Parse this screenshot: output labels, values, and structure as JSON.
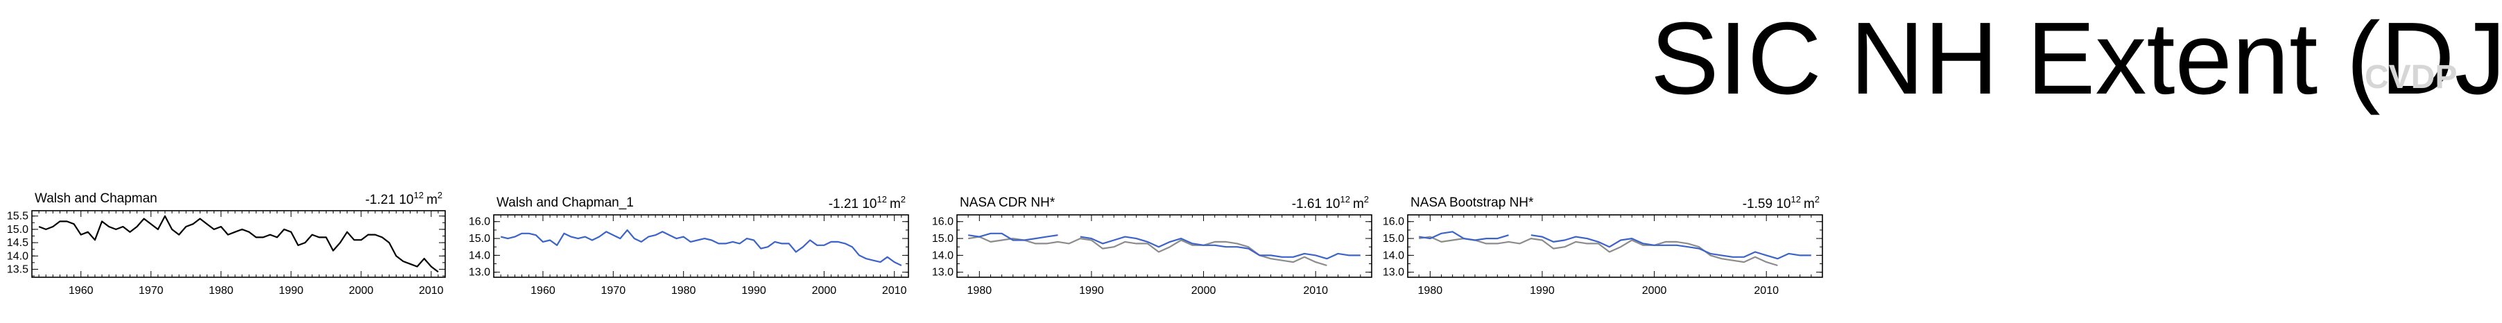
{
  "header": {
    "title": "SIC NH Extent (DJF)",
    "watermark": "CVDP"
  },
  "colors": {
    "obs_line": "#000000",
    "model_line": "#3b63c9",
    "reference_line": "#8c8c8c"
  },
  "chart_data": [
    {
      "type": "line",
      "title": "Walsh and Chapman",
      "trend": "-1.21 10",
      "trend_exp": "12",
      "trend_unit": "m",
      "trend_unit_exp": "2",
      "xlim": [
        1953,
        2012
      ],
      "ylim": [
        13.2,
        15.7
      ],
      "xticks": [
        1960,
        1970,
        1980,
        1990,
        2000,
        2010
      ],
      "yticks": [
        13.5,
        14.0,
        14.5,
        15.0,
        15.5
      ],
      "series": [
        {
          "color": "#000000",
          "x": [
            1954,
            1955,
            1956,
            1957,
            1958,
            1959,
            1960,
            1961,
            1962,
            1963,
            1964,
            1965,
            1966,
            1967,
            1968,
            1969,
            1970,
            1971,
            1972,
            1973,
            1974,
            1975,
            1976,
            1977,
            1978,
            1979,
            1980,
            1981,
            1982,
            1983,
            1984,
            1985,
            1986,
            1987,
            1988,
            1989,
            1990,
            1991,
            1992,
            1993,
            1994,
            1995,
            1996,
            1997,
            1998,
            1999,
            2000,
            2001,
            2002,
            2003,
            2004,
            2005,
            2006,
            2007,
            2008,
            2009,
            2010,
            2011
          ],
          "values": [
            15.1,
            15.0,
            15.1,
            15.3,
            15.3,
            15.2,
            14.8,
            14.9,
            14.6,
            15.3,
            15.1,
            15.0,
            15.1,
            14.9,
            15.1,
            15.4,
            15.2,
            15.0,
            15.5,
            15.0,
            14.8,
            15.1,
            15.2,
            15.4,
            15.2,
            15.0,
            15.1,
            14.8,
            14.9,
            15.0,
            14.9,
            14.7,
            14.7,
            14.8,
            14.7,
            15.0,
            14.9,
            14.4,
            14.5,
            14.8,
            14.7,
            14.7,
            14.2,
            14.5,
            14.9,
            14.6,
            14.6,
            14.8,
            14.8,
            14.7,
            14.5,
            14.0,
            13.8,
            13.7,
            13.6,
            13.9,
            13.6,
            13.4
          ]
        }
      ]
    },
    {
      "type": "line",
      "title": "Walsh and Chapman_1",
      "trend": "-1.21 10",
      "trend_exp": "12",
      "trend_unit": "m",
      "trend_unit_exp": "2",
      "xlim": [
        1953,
        2012
      ],
      "ylim": [
        12.7,
        16.4
      ],
      "xticks": [
        1960,
        1970,
        1980,
        1990,
        2000,
        2010
      ],
      "yticks": [
        13.0,
        14.0,
        15.0,
        16.0
      ],
      "series": [
        {
          "color": "#3b63c9",
          "x": [
            1954,
            1955,
            1956,
            1957,
            1958,
            1959,
            1960,
            1961,
            1962,
            1963,
            1964,
            1965,
            1966,
            1967,
            1968,
            1969,
            1970,
            1971,
            1972,
            1973,
            1974,
            1975,
            1976,
            1977,
            1978,
            1979,
            1980,
            1981,
            1982,
            1983,
            1984,
            1985,
            1986,
            1987,
            1988,
            1989,
            1990,
            1991,
            1992,
            1993,
            1994,
            1995,
            1996,
            1997,
            1998,
            1999,
            2000,
            2001,
            2002,
            2003,
            2004,
            2005,
            2006,
            2007,
            2008,
            2009,
            2010,
            2011
          ],
          "values": [
            15.1,
            15.0,
            15.1,
            15.3,
            15.3,
            15.2,
            14.8,
            14.9,
            14.6,
            15.3,
            15.1,
            15.0,
            15.1,
            14.9,
            15.1,
            15.4,
            15.2,
            15.0,
            15.5,
            15.0,
            14.8,
            15.1,
            15.2,
            15.4,
            15.2,
            15.0,
            15.1,
            14.8,
            14.9,
            15.0,
            14.9,
            14.7,
            14.7,
            14.8,
            14.7,
            15.0,
            14.9,
            14.4,
            14.5,
            14.8,
            14.7,
            14.7,
            14.2,
            14.5,
            14.9,
            14.6,
            14.6,
            14.8,
            14.8,
            14.7,
            14.5,
            14.0,
            13.8,
            13.7,
            13.6,
            13.9,
            13.6,
            13.4
          ]
        }
      ]
    },
    {
      "type": "line",
      "title": "NASA CDR NH*",
      "trend": "-1.61 10",
      "trend_exp": "12",
      "trend_unit": "m",
      "trend_unit_exp": "2",
      "xlim": [
        1978,
        2015
      ],
      "ylim": [
        12.7,
        16.4
      ],
      "xticks": [
        1980,
        1990,
        2000,
        2010
      ],
      "yticks": [
        13.0,
        14.0,
        15.0,
        16.0
      ],
      "series": [
        {
          "color": "#8c8c8c",
          "x": [
            1979,
            1980,
            1981,
            1982,
            1983,
            1984,
            1985,
            1986,
            1987,
            1988,
            1989,
            1990,
            1991,
            1992,
            1993,
            1994,
            1995,
            1996,
            1997,
            1998,
            1999,
            2000,
            2001,
            2002,
            2003,
            2004,
            2005,
            2006,
            2007,
            2008,
            2009,
            2010,
            2011
          ],
          "values": [
            15.0,
            15.1,
            14.8,
            14.9,
            15.0,
            14.9,
            14.7,
            14.7,
            14.8,
            14.7,
            15.0,
            14.9,
            14.4,
            14.5,
            14.8,
            14.7,
            14.7,
            14.2,
            14.5,
            14.9,
            14.6,
            14.6,
            14.8,
            14.8,
            14.7,
            14.5,
            14.0,
            13.8,
            13.7,
            13.6,
            13.9,
            13.6,
            13.4
          ]
        },
        {
          "color": "#3b63c9",
          "x": [
            1979,
            1980,
            1981,
            1982,
            1983,
            1984,
            1985,
            1986,
            1987
          ],
          "values": [
            15.2,
            15.1,
            15.3,
            15.3,
            14.9,
            14.9,
            15.0,
            15.1,
            15.2
          ]
        },
        {
          "color": "#3b63c9",
          "x": [
            1989,
            1990,
            1991,
            1992,
            1993,
            1994,
            1995,
            1996,
            1997,
            1998,
            1999,
            2000,
            2001,
            2002,
            2003,
            2004,
            2005,
            2006,
            2007,
            2008,
            2009,
            2010,
            2011,
            2012,
            2013,
            2014
          ],
          "values": [
            15.1,
            15.0,
            14.7,
            14.9,
            15.1,
            15.0,
            14.8,
            14.5,
            14.8,
            15.0,
            14.7,
            14.6,
            14.6,
            14.5,
            14.5,
            14.4,
            14.0,
            14.0,
            13.9,
            13.9,
            14.1,
            14.0,
            13.8,
            14.1,
            14.0,
            14.0
          ]
        }
      ]
    },
    {
      "type": "line",
      "title": "NASA Bootstrap NH*",
      "trend": "-1.59 10",
      "trend_exp": "12",
      "trend_unit": "m",
      "trend_unit_exp": "2",
      "xlim": [
        1978,
        2015
      ],
      "ylim": [
        12.7,
        16.4
      ],
      "xticks": [
        1980,
        1990,
        2000,
        2010
      ],
      "yticks": [
        13.0,
        14.0,
        15.0,
        16.0
      ],
      "series": [
        {
          "color": "#8c8c8c",
          "x": [
            1979,
            1980,
            1981,
            1982,
            1983,
            1984,
            1985,
            1986,
            1987,
            1988,
            1989,
            1990,
            1991,
            1992,
            1993,
            1994,
            1995,
            1996,
            1997,
            1998,
            1999,
            2000,
            2001,
            2002,
            2003,
            2004,
            2005,
            2006,
            2007,
            2008,
            2009,
            2010,
            2011
          ],
          "values": [
            15.0,
            15.1,
            14.8,
            14.9,
            15.0,
            14.9,
            14.7,
            14.7,
            14.8,
            14.7,
            15.0,
            14.9,
            14.4,
            14.5,
            14.8,
            14.7,
            14.7,
            14.2,
            14.5,
            14.9,
            14.6,
            14.6,
            14.8,
            14.8,
            14.7,
            14.5,
            14.0,
            13.8,
            13.7,
            13.6,
            13.9,
            13.6,
            13.4
          ]
        },
        {
          "color": "#3b63c9",
          "x": [
            1979,
            1980,
            1981,
            1982,
            1983,
            1984,
            1985,
            1986,
            1987
          ],
          "values": [
            15.1,
            15.0,
            15.3,
            15.4,
            15.0,
            14.9,
            15.0,
            15.0,
            15.2
          ]
        },
        {
          "color": "#3b63c9",
          "x": [
            1989,
            1990,
            1991,
            1992,
            1993,
            1994,
            1995,
            1996,
            1997,
            1998,
            1999,
            2000,
            2001,
            2002,
            2003,
            2004,
            2005,
            2006,
            2007,
            2008,
            2009,
            2010,
            2011,
            2012,
            2013,
            2014
          ],
          "values": [
            15.2,
            15.1,
            14.8,
            14.9,
            15.1,
            15.0,
            14.8,
            14.5,
            14.9,
            15.0,
            14.7,
            14.6,
            14.6,
            14.6,
            14.5,
            14.4,
            14.1,
            14.0,
            13.9,
            13.9,
            14.2,
            14.0,
            13.8,
            14.1,
            14.0,
            14.0
          ]
        }
      ]
    }
  ]
}
